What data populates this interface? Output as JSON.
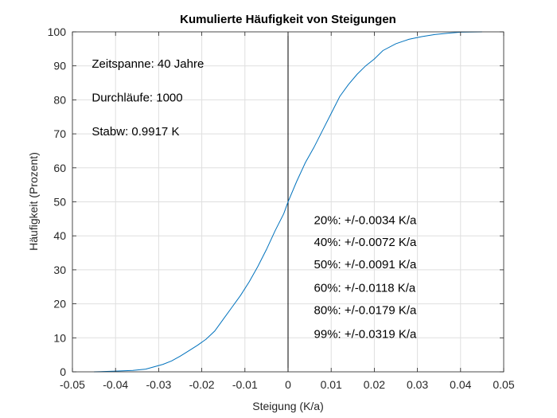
{
  "chart_data": {
    "type": "line",
    "title": "Kumulierte Häufigkeit von Steigungen",
    "xlabel": "Steigung (K/a)",
    "ylabel": "Häufigkeit (Prozent)",
    "xlim": [
      -0.05,
      0.05
    ],
    "ylim": [
      0,
      100
    ],
    "xticks": [
      -0.05,
      -0.04,
      -0.03,
      -0.02,
      -0.01,
      0,
      0.01,
      0.02,
      0.03,
      0.04,
      0.05
    ],
    "xtick_labels": [
      "-0.05",
      "-0.04",
      "-0.03",
      "-0.02",
      "-0.01",
      "0",
      "0.01",
      "0.02",
      "0.03",
      "0.04",
      "0.05"
    ],
    "yticks": [
      0,
      10,
      20,
      30,
      40,
      50,
      60,
      70,
      80,
      90,
      100
    ],
    "ytick_labels": [
      "0",
      "10",
      "20",
      "30",
      "40",
      "50",
      "60",
      "70",
      "80",
      "90",
      "100"
    ],
    "grid": true,
    "line_color": "#0072BD",
    "vline_x": 0,
    "series": [
      {
        "x": [
          -0.045,
          -0.04,
          -0.036,
          -0.033,
          -0.031,
          -0.029,
          -0.027,
          -0.025,
          -0.023,
          -0.021,
          -0.019,
          -0.017,
          -0.015,
          -0.013,
          -0.011,
          -0.009,
          -0.007,
          -0.005,
          -0.003,
          -0.001,
          0.0,
          0.002,
          0.004,
          0.006,
          0.008,
          0.01,
          0.012,
          0.014,
          0.016,
          0.018,
          0.02,
          0.022,
          0.025,
          0.028,
          0.031,
          0.034,
          0.037,
          0.04,
          0.045
        ],
        "y": [
          0,
          0.2,
          0.4,
          0.8,
          1.5,
          2.2,
          3.2,
          4.6,
          6.2,
          7.8,
          9.6,
          12.0,
          15.5,
          19.0,
          22.5,
          26.5,
          31.0,
          36.0,
          41.5,
          46.5,
          50.0,
          56.0,
          61.5,
          66.0,
          71.0,
          76.0,
          81.0,
          84.5,
          87.5,
          90.0,
          92.0,
          94.5,
          96.5,
          97.8,
          98.6,
          99.2,
          99.6,
          99.9,
          100
        ]
      }
    ],
    "annotations": [
      {
        "text": "Zeitspanne: 40 Jahre",
        "x": -0.0455,
        "y": 89.5
      },
      {
        "text": "Durchläufe: 1000",
        "x": -0.0455,
        "y": 79.5
      },
      {
        "text": "Stabw:  0.9917 K",
        "x": -0.0455,
        "y": 69.5
      },
      {
        "text": "20%: +/-0.0034 K/a",
        "x": 0.006,
        "y": 43.5
      },
      {
        "text": "40%: +/-0.0072 K/a",
        "x": 0.006,
        "y": 37.0
      },
      {
        "text": "50%: +/-0.0091 K/a",
        "x": 0.006,
        "y": 30.5
      },
      {
        "text": "60%: +/-0.0118 K/a",
        "x": 0.006,
        "y": 23.5
      },
      {
        "text": "80%: +/-0.0179 K/a",
        "x": 0.006,
        "y": 17.0
      },
      {
        "text": "99%: +/-0.0319 K/a",
        "x": 0.006,
        "y": 10.0
      }
    ]
  }
}
